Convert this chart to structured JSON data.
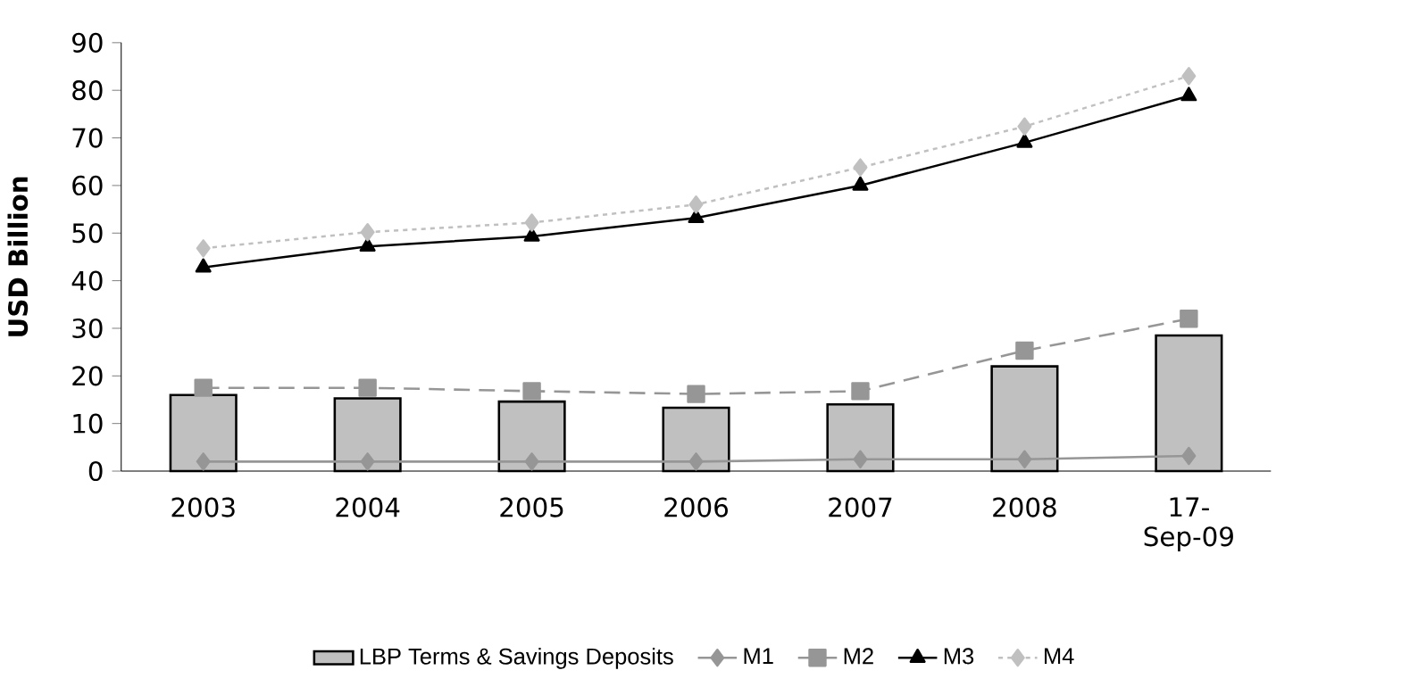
{
  "chart_data": {
    "type": "bar",
    "ylabel": "USD Billion",
    "categories": [
      "2003",
      "2004",
      "2005",
      "2006",
      "2007",
      "2008",
      "17-Sep-09"
    ],
    "series": [
      {
        "name": "LBP Terms & Savings Deposits",
        "color": "#c0c0c0",
        "values": [
          16,
          15.3,
          14.6,
          13.3,
          14,
          22,
          28.5
        ]
      },
      {
        "name": "M1",
        "type": "line",
        "color": "#969696",
        "marker": "diamond",
        "line_style": "solid",
        "values": [
          2,
          2,
          2,
          2,
          2.5,
          2.5,
          3.2
        ]
      },
      {
        "name": "M2",
        "type": "line",
        "color": "#969696",
        "marker": "square",
        "line_style": "dashed",
        "values": [
          17.5,
          17.5,
          16.8,
          16.2,
          16.8,
          25.3,
          32
        ]
      },
      {
        "name": "M3",
        "type": "line",
        "color": "#000000",
        "marker": "triangle",
        "line_style": "solid",
        "values": [
          42.8,
          47.2,
          49.3,
          53.2,
          60,
          69,
          78.8
        ]
      },
      {
        "name": "M4",
        "type": "line",
        "color": "#c0c0c0",
        "marker": "diamond",
        "line_style": "dotted",
        "values": [
          46.8,
          50.2,
          52.2,
          56,
          63.8,
          72.4,
          83
        ]
      }
    ],
    "ylim": [
      0,
      90
    ],
    "yticks": [
      0,
      10,
      20,
      30,
      40,
      50,
      60,
      70,
      80,
      90
    ],
    "grid": false,
    "legend": "bottom"
  }
}
